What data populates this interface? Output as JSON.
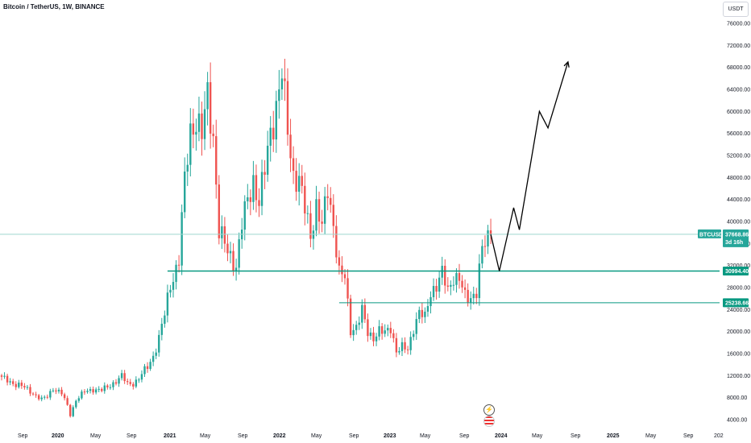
{
  "header": {
    "title": "Bitcoin / TetherUS, 1W, BINANCE",
    "currency": "USDT"
  },
  "price_labels": {
    "current": "37668.86",
    "countdown": "3d 16h",
    "ticker": "BTCUSDT",
    "level1": "30994.40",
    "level2": "25238.66"
  },
  "colors": {
    "up": "#26a69a",
    "down": "#ef5350",
    "level": "#089981",
    "projection": "#000000",
    "current_line": "#9fd8cf"
  },
  "events": [
    {
      "name": "dividend-event-icon",
      "glyph": "⚡"
    },
    {
      "name": "us-flag-event-icon",
      "glyph": "🇺🇸"
    }
  ],
  "chart_data": {
    "type": "candlestick",
    "title": "Bitcoin / TetherUS, 1W, BINANCE",
    "ylabel": "USDT",
    "ylim": [
      3000,
      78500
    ],
    "y_ticks": [
      4000,
      8000,
      12000,
      16000,
      20000,
      24000,
      28000,
      32000,
      36000,
      40000,
      44000,
      48000,
      52000,
      56000,
      60000,
      64000,
      68000,
      72000,
      76000
    ],
    "x_ticks": [
      "Sep",
      "2020",
      "May",
      "Sep",
      "2021",
      "May",
      "Sep",
      "2022",
      "May",
      "Sep",
      "2023",
      "May",
      "Sep",
      "2024",
      "May",
      "Sep",
      "2025",
      "May",
      "Sep",
      "202"
    ],
    "price_path": [
      [
        0,
        11500
      ],
      [
        6,
        10300
      ],
      [
        10,
        9200
      ],
      [
        14,
        7600
      ],
      [
        16,
        8200
      ],
      [
        18,
        9800
      ],
      [
        21,
        8700
      ],
      [
        23,
        6500
      ],
      [
        24,
        4900
      ],
      [
        26,
        7600
      ],
      [
        29,
        9000
      ],
      [
        32,
        9600
      ],
      [
        35,
        9300
      ],
      [
        37,
        9900
      ],
      [
        40,
        11100
      ],
      [
        42,
        11800
      ],
      [
        44,
        10500
      ],
      [
        46,
        10700
      ],
      [
        48,
        11400
      ],
      [
        51,
        13600
      ],
      [
        53,
        15700
      ],
      [
        55,
        18700
      ],
      [
        57,
        23000
      ],
      [
        59,
        28800
      ],
      [
        62,
        33000
      ],
      [
        64,
        47000
      ],
      [
        66,
        57000
      ],
      [
        68,
        58800
      ],
      [
        70,
        55000
      ],
      [
        72,
        63000
      ],
      [
        74,
        56000
      ],
      [
        76,
        38000
      ],
      [
        78,
        35500
      ],
      [
        80,
        34000
      ],
      [
        82,
        32000
      ],
      [
        84,
        39000
      ],
      [
        86,
        44000
      ],
      [
        88,
        48000
      ],
      [
        90,
        43000
      ],
      [
        92,
        49000
      ],
      [
        94,
        57000
      ],
      [
        96,
        61000
      ],
      [
        98,
        66000
      ],
      [
        100,
        57000
      ],
      [
        102,
        49000
      ],
      [
        104,
        47000
      ],
      [
        106,
        42000
      ],
      [
        108,
        38000
      ],
      [
        110,
        43000
      ],
      [
        112,
        38500
      ],
      [
        114,
        46000
      ],
      [
        116,
        40000
      ],
      [
        118,
        30500
      ],
      [
        120,
        29500
      ],
      [
        122,
        20500
      ],
      [
        124,
        21000
      ],
      [
        126,
        23500
      ],
      [
        128,
        19800
      ],
      [
        130,
        19200
      ],
      [
        132,
        20000
      ],
      [
        134,
        19500
      ],
      [
        136,
        21000
      ],
      [
        138,
        16500
      ],
      [
        140,
        16900
      ],
      [
        142,
        16700
      ],
      [
        144,
        21000
      ],
      [
        146,
        23300
      ],
      [
        148,
        22300
      ],
      [
        150,
        27500
      ],
      [
        152,
        28500
      ],
      [
        154,
        30200
      ],
      [
        156,
        27500
      ],
      [
        158,
        30400
      ],
      [
        160,
        29300
      ],
      [
        162,
        26000
      ],
      [
        164,
        26500
      ],
      [
        166,
        27500
      ],
      [
        168,
        34500
      ],
      [
        170,
        37000
      ],
      [
        171,
        37668.86
      ]
    ],
    "levels": [
      {
        "name": "resistance",
        "value": 30994.4
      },
      {
        "name": "support",
        "value": 25238.66
      }
    ],
    "current_price": 37668.86,
    "projection": [
      [
        171,
        37668.86
      ],
      [
        174,
        31000
      ],
      [
        179,
        42500
      ],
      [
        181,
        38500
      ],
      [
        188,
        60000
      ],
      [
        191,
        57000
      ],
      [
        198,
        69000
      ]
    ],
    "grid": false,
    "legend": "none"
  }
}
